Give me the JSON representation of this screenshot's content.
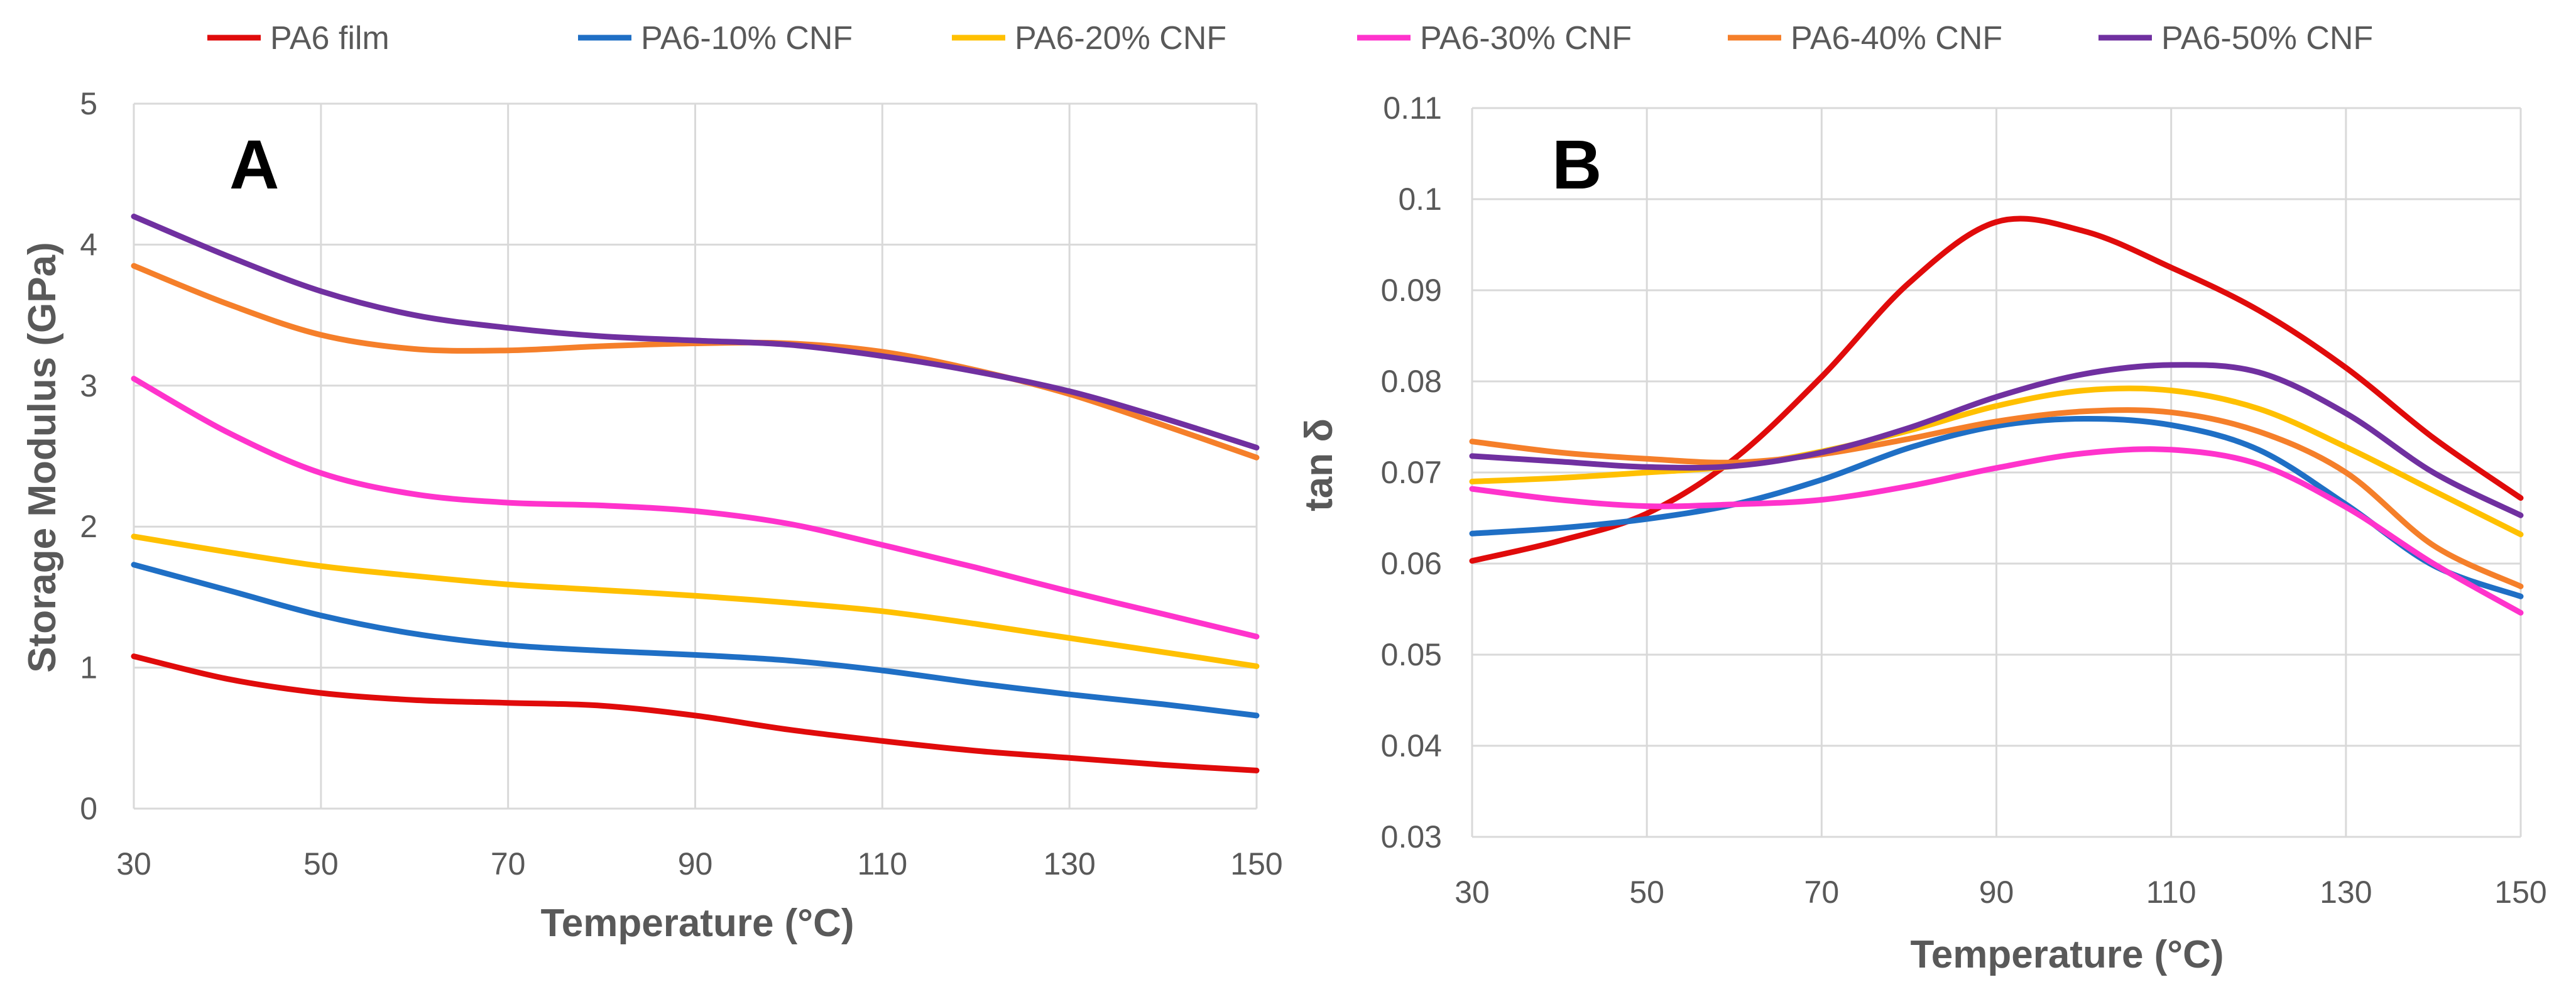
{
  "legend": [
    {
      "label": "PA6 film",
      "color": "#e00b0b"
    },
    {
      "label": "PA6-10% CNF",
      "color": "#1f6fc5"
    },
    {
      "label": "PA6-20% CNF",
      "color": "#ffc000"
    },
    {
      "label": "PA6-30% CNF",
      "color": "#ff33cc"
    },
    {
      "label": "PA6-40% CNF",
      "color": "#f57f2a"
    },
    {
      "label": "PA6-50% CNF",
      "color": "#7030a0"
    }
  ],
  "chart_data": [
    {
      "type": "line",
      "panel": "A",
      "xlabel": "Temperature (°C)",
      "ylabel": "Storage Modulus (GPa)",
      "xlim": [
        30,
        150
      ],
      "ylim": [
        0,
        5
      ],
      "xticks": [
        "30",
        "50",
        "70",
        "90",
        "110",
        "130",
        "150"
      ],
      "yticks": [
        "0",
        "1",
        "2",
        "3",
        "4",
        "5"
      ],
      "grid": true,
      "x": [
        30,
        40,
        50,
        60,
        70,
        80,
        90,
        100,
        110,
        120,
        130,
        140,
        150
      ],
      "series": [
        {
          "name": "PA6 film",
          "values": [
            1.08,
            0.92,
            0.82,
            0.77,
            0.75,
            0.73,
            0.66,
            0.56,
            0.48,
            0.41,
            0.36,
            0.31,
            0.27
          ]
        },
        {
          "name": "PA6-10% CNF",
          "values": [
            1.73,
            1.55,
            1.37,
            1.24,
            1.16,
            1.12,
            1.09,
            1.05,
            0.98,
            0.89,
            0.81,
            0.74,
            0.66
          ]
        },
        {
          "name": "PA6-20% CNF",
          "values": [
            1.93,
            1.82,
            1.72,
            1.65,
            1.59,
            1.55,
            1.51,
            1.46,
            1.4,
            1.31,
            1.21,
            1.11,
            1.01
          ]
        },
        {
          "name": "PA6-30% CNF",
          "values": [
            3.05,
            2.67,
            2.38,
            2.23,
            2.17,
            2.15,
            2.11,
            2.02,
            1.87,
            1.71,
            1.54,
            1.38,
            1.22
          ]
        },
        {
          "name": "PA6-40% CNF",
          "values": [
            3.85,
            3.58,
            3.36,
            3.26,
            3.25,
            3.28,
            3.3,
            3.3,
            3.24,
            3.11,
            2.94,
            2.72,
            2.49
          ]
        },
        {
          "name": "PA6-50% CNF",
          "values": [
            4.2,
            3.92,
            3.67,
            3.5,
            3.41,
            3.35,
            3.32,
            3.29,
            3.21,
            3.1,
            2.96,
            2.77,
            2.56
          ]
        }
      ]
    },
    {
      "type": "line",
      "panel": "B",
      "xlabel": "Temperature (°C)",
      "ylabel": "tan δ",
      "xlim": [
        30,
        150
      ],
      "ylim": [
        0.03,
        0.11
      ],
      "xticks": [
        "30",
        "50",
        "70",
        "90",
        "110",
        "130",
        "150"
      ],
      "yticks": [
        "0.03",
        "0.04",
        "0.05",
        "0.06",
        "0.07",
        "0.08",
        "0.09",
        "0.1",
        "0.11"
      ],
      "grid": true,
      "x": [
        30,
        40,
        50,
        60,
        70,
        80,
        90,
        100,
        110,
        120,
        130,
        140,
        150
      ],
      "series": [
        {
          "name": "PA6 film",
          "values": [
            0.0603,
            0.0625,
            0.0655,
            0.0715,
            0.0805,
            0.0908,
            0.0975,
            0.0965,
            0.0925,
            0.0878,
            0.0815,
            0.0738,
            0.0672
          ]
        },
        {
          "name": "PA6-10% CNF",
          "values": [
            0.0633,
            0.0639,
            0.0649,
            0.0665,
            0.0692,
            0.0727,
            0.0751,
            0.0759,
            0.0752,
            0.0725,
            0.0665,
            0.0598,
            0.0564
          ]
        },
        {
          "name": "PA6-20% CNF",
          "values": [
            0.069,
            0.0694,
            0.07,
            0.0707,
            0.0723,
            0.0746,
            0.0773,
            0.079,
            0.079,
            0.077,
            0.0728,
            0.068,
            0.0632
          ]
        },
        {
          "name": "PA6-30% CNF",
          "values": [
            0.0682,
            0.067,
            0.0663,
            0.0665,
            0.067,
            0.0685,
            0.0705,
            0.0721,
            0.0725,
            0.0709,
            0.0662,
            0.06,
            0.0546
          ]
        },
        {
          "name": "PA6-40% CNF",
          "values": [
            0.0734,
            0.0722,
            0.0715,
            0.0711,
            0.072,
            0.0737,
            0.0756,
            0.0767,
            0.0766,
            0.0745,
            0.07,
            0.062,
            0.0575
          ]
        },
        {
          "name": "PA6-50% CNF",
          "values": [
            0.0718,
            0.0712,
            0.0706,
            0.0707,
            0.0722,
            0.0749,
            0.0783,
            0.0808,
            0.0818,
            0.081,
            0.0765,
            0.07,
            0.0653
          ]
        }
      ]
    }
  ]
}
